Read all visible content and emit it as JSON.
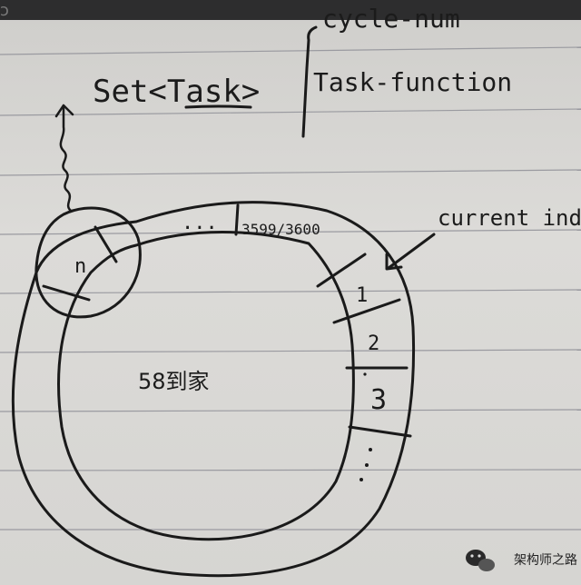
{
  "photo": {
    "subject": "hand-drawn diagram on ruled notebook paper",
    "struct": {
      "container": "Set<Task>",
      "fields": [
        "cycle-num",
        "Task-function"
      ]
    },
    "ring": {
      "slots": [
        "n",
        "...",
        "3599/3600",
        "1",
        "2",
        "3"
      ],
      "center_label": "58到家",
      "pointer_label": "current index"
    },
    "watermark": "架构师之路",
    "colors": {
      "paper": "#d9d8d6",
      "ink": "#1a1a1a",
      "rule": "#9a9aa0"
    }
  }
}
